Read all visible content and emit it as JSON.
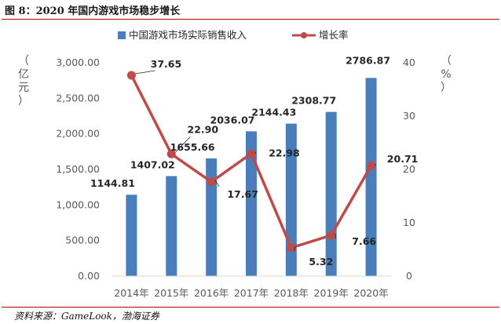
{
  "figure": {
    "title": "图 8：2020 年国内游戏市场稳步增长",
    "source": "资料来源：GameLook，渤海证券"
  },
  "chart_data": {
    "type": "bar",
    "title": "",
    "categories": [
      "2014年",
      "2015年",
      "2016年",
      "2017年",
      "2018年",
      "2019年",
      "2020年"
    ],
    "series": [
      {
        "name": "中国游戏市场实际销售收入",
        "type": "bar",
        "axis": "left",
        "color": "#4a7ebb",
        "values": [
          1144.81,
          1407.02,
          1655.66,
          2036.07,
          2144.43,
          2308.77,
          2786.87
        ],
        "labels": [
          "1144.81",
          "1407.02",
          "1655.66",
          "2036.07",
          "2144.43",
          "2308.77",
          "2786.87"
        ]
      },
      {
        "name": "增长率",
        "type": "line",
        "axis": "right",
        "color": "#be4b48",
        "values": [
          37.65,
          22.9,
          17.67,
          22.98,
          5.32,
          7.66,
          20.71
        ],
        "labels": [
          "37.65",
          "22.90",
          "17.67",
          "22.98",
          "5.32",
          "7.66",
          "20.71"
        ]
      }
    ],
    "y_left": {
      "label": "（亿元）",
      "lim": [
        0,
        3000
      ],
      "ticks": [
        0,
        500,
        1000,
        1500,
        2000,
        2500,
        3000
      ],
      "tick_labels": [
        "0.00",
        "500.00",
        "1,000.00",
        "1,500.00",
        "2,000.00",
        "2,500.00",
        "3,000.00"
      ]
    },
    "y_right": {
      "label": "（%）",
      "lim": [
        0,
        40
      ],
      "ticks": [
        0,
        10,
        20,
        30,
        40
      ],
      "tick_labels": [
        "0",
        "10",
        "20",
        "30",
        "40"
      ]
    },
    "grid": false,
    "legend_position": "top"
  }
}
